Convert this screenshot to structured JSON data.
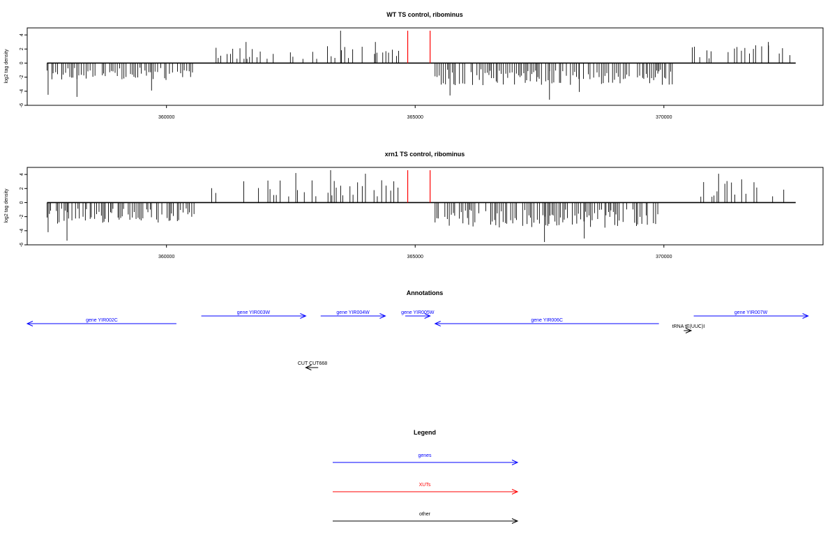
{
  "chart_data": [
    {
      "type": "bar",
      "title": "WT TS control, ribominus",
      "ylabel": "log2 tag density",
      "xlabel": "",
      "xlim": [
        357200,
        373200
      ],
      "ylim": [
        -6,
        5
      ],
      "x_ticks": [
        360000,
        365000,
        370000
      ],
      "y_ticks": [
        -6,
        -4,
        -2,
        0,
        2,
        4
      ],
      "y_tick_labels": [
        "-6",
        "-4",
        "-2",
        "0",
        "2",
        "4"
      ],
      "grid": false,
      "signal_x_range": [
        357600,
        372650
      ],
      "positive_regions": [
        {
          "start": 360900,
          "end": 364800,
          "mean": 1.5
        },
        {
          "start": 370400,
          "end": 372650,
          "mean": 1.6
        }
      ],
      "negative_regions": [
        {
          "start": 357600,
          "end": 360600,
          "mean": -1.6
        },
        {
          "start": 365400,
          "end": 370200,
          "mean": -2.1
        }
      ],
      "tall_positive_peaks": [
        {
          "x": 361600,
          "y": 3.0
        },
        {
          "x": 363500,
          "y": 4.6
        },
        {
          "x": 364200,
          "y": 3.0
        },
        {
          "x": 372100,
          "y": 3.0
        }
      ],
      "deep_negative_peaks": [
        {
          "x": 357620,
          "y": -4.5
        },
        {
          "x": 358200,
          "y": -4.8
        },
        {
          "x": 359700,
          "y": -3.9
        },
        {
          "x": 365700,
          "y": -4.6
        },
        {
          "x": 367700,
          "y": -5.2
        },
        {
          "x": 368300,
          "y": -4.1
        }
      ],
      "highlight_lines": [
        {
          "x": 364850,
          "y": 4.6,
          "color": "#ff0000"
        },
        {
          "x": 365300,
          "y": 4.6,
          "color": "#ff0000"
        }
      ],
      "seed": 11
    },
    {
      "type": "bar",
      "title": "xrn1 TS control, ribominus",
      "ylabel": "log2 tag density",
      "xlabel": "",
      "xlim": [
        357200,
        373200
      ],
      "ylim": [
        -6,
        5
      ],
      "x_ticks": [
        360000,
        365000,
        370000
      ],
      "y_ticks": [
        -6,
        -4,
        -2,
        0,
        2,
        4
      ],
      "y_tick_labels": [
        "-6",
        "-4",
        "-2",
        "0",
        "2",
        "4"
      ],
      "grid": false,
      "signal_x_range": [
        357600,
        372650
      ],
      "positive_regions": [
        {
          "start": 360850,
          "end": 364800,
          "mean": 2.0
        },
        {
          "start": 370700,
          "end": 372650,
          "mean": 2.1
        }
      ],
      "negative_regions": [
        {
          "start": 357600,
          "end": 360600,
          "mean": -2.0
        },
        {
          "start": 365400,
          "end": 369900,
          "mean": -2.4
        }
      ],
      "tall_positive_peaks": [
        {
          "x": 362600,
          "y": 4.2
        },
        {
          "x": 363300,
          "y": 4.6
        },
        {
          "x": 364000,
          "y": 4.1
        },
        {
          "x": 371100,
          "y": 4.1
        }
      ],
      "deep_negative_peaks": [
        {
          "x": 357620,
          "y": -4.2
        },
        {
          "x": 358000,
          "y": -5.4
        },
        {
          "x": 367600,
          "y": -5.6
        },
        {
          "x": 368400,
          "y": -5.1
        }
      ],
      "highlight_lines": [
        {
          "x": 364850,
          "y": 4.6,
          "color": "#ff0000"
        },
        {
          "x": 365300,
          "y": 4.6,
          "color": "#ff0000"
        }
      ],
      "seed": 23
    }
  ],
  "annotations": {
    "title": "Annotations",
    "genes": [
      {
        "label": "gene YIR002C",
        "start": 357200,
        "end": 360200,
        "strand": "-",
        "row": 0,
        "color": "#0000ff"
      },
      {
        "label": "gene YIR003W",
        "start": 360700,
        "end": 362800,
        "strand": "+",
        "row": 1,
        "color": "#0000ff"
      },
      {
        "label": "gene YIR004W",
        "start": 363100,
        "end": 364400,
        "strand": "+",
        "row": 1,
        "color": "#0000ff"
      },
      {
        "label": "gene YIR005W",
        "start": 364800,
        "end": 365300,
        "strand": "+",
        "row": 1,
        "color": "#0000ff"
      },
      {
        "label": "gene YIR006C",
        "start": 365400,
        "end": 369900,
        "strand": "-",
        "row": 0,
        "color": "#0000ff"
      },
      {
        "label": "gene YIR007W",
        "start": 370600,
        "end": 372900,
        "strand": "+",
        "row": 1,
        "color": "#0000ff"
      }
    ],
    "other": [
      {
        "label": "tRNA tE(UUC)I",
        "start": 370400,
        "end": 370550,
        "strand": "+",
        "color": "#000000"
      },
      {
        "label": "CUT CUT668",
        "start": 363050,
        "end": 362800,
        "strand": "-",
        "color": "#000000"
      }
    ]
  },
  "legend": {
    "title": "Legend",
    "items": [
      {
        "label": "genes",
        "color": "#0000ff"
      },
      {
        "label": "XUTs",
        "color": "#ff0000"
      },
      {
        "label": "other",
        "color": "#000000"
      }
    ]
  }
}
